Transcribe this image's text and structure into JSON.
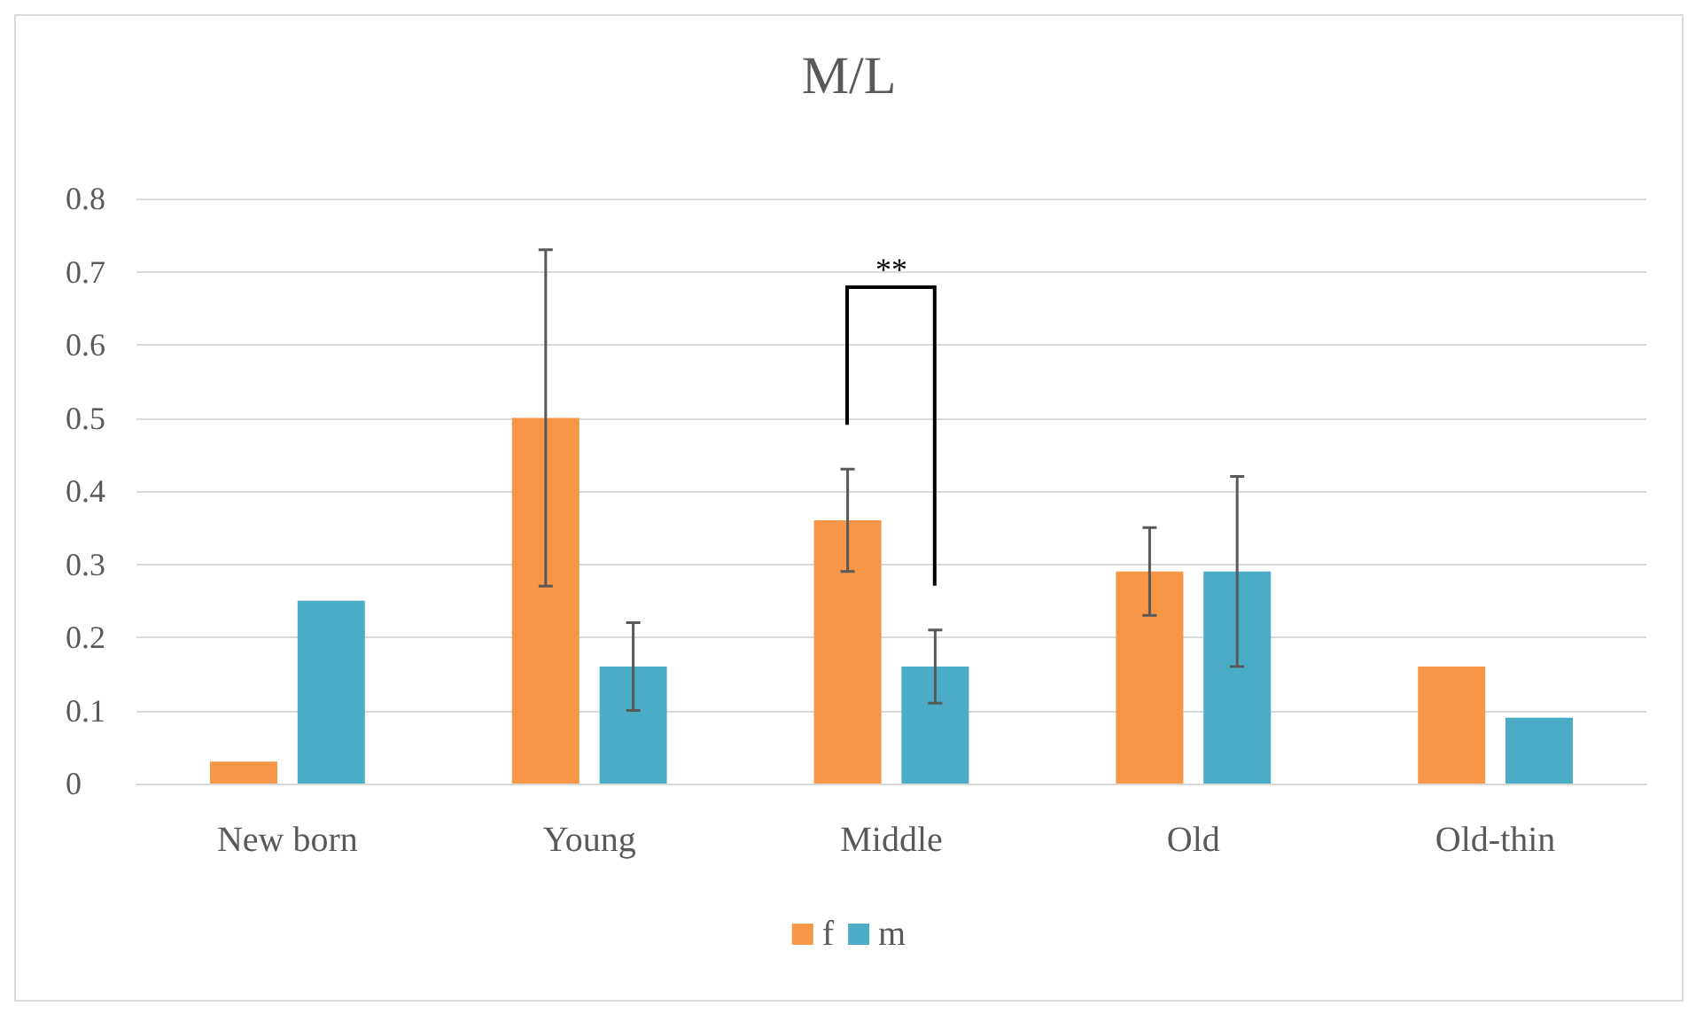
{
  "chart_data": {
    "type": "bar",
    "title": "M/L",
    "categories": [
      "New born",
      "Young",
      "Middle",
      "Old",
      "Old-thin"
    ],
    "series": [
      {
        "name": "f",
        "color": "#f79646",
        "values": [
          0.03,
          0.5,
          0.36,
          0.29,
          0.16
        ],
        "errors": [
          null,
          0.23,
          0.07,
          0.06,
          null
        ]
      },
      {
        "name": "m",
        "color": "#4bacc6",
        "values": [
          0.25,
          0.16,
          0.16,
          0.29,
          0.09
        ],
        "errors": [
          null,
          0.06,
          0.05,
          0.13,
          null
        ]
      }
    ],
    "ylim": [
      0,
      0.8
    ],
    "yticks": [
      0,
      0.1,
      0.2,
      0.3,
      0.4,
      0.5,
      0.6,
      0.7,
      0.8
    ],
    "grid": "y",
    "legend": "bottom",
    "annotations": [
      "**"
    ]
  }
}
